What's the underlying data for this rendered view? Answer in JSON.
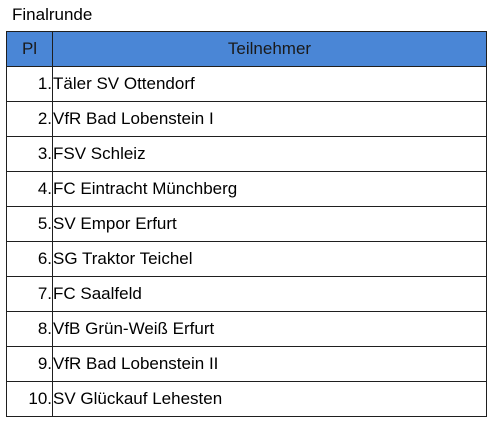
{
  "title": "Finalrunde",
  "table": {
    "header_color": "#4a86d6",
    "columns": [
      "Pl",
      "Teilnehmer"
    ],
    "rows": [
      {
        "pos": "1.",
        "team": "Täler SV Ottendorf"
      },
      {
        "pos": "2.",
        "team": "VfR Bad Lobenstein I"
      },
      {
        "pos": "3.",
        "team": "FSV Schleiz"
      },
      {
        "pos": "4.",
        "team": "FC Eintracht Münchberg"
      },
      {
        "pos": "5.",
        "team": "SV Empor Erfurt"
      },
      {
        "pos": "6.",
        "team": "SG Traktor Teichel"
      },
      {
        "pos": "7.",
        "team": "FC Saalfeld"
      },
      {
        "pos": "8.",
        "team": "VfB Grün-Weiß Erfurt"
      },
      {
        "pos": "9.",
        "team": "VfR Bad Lobenstein II"
      },
      {
        "pos": "10.",
        "team": "SV Glückauf Lehesten"
      }
    ]
  }
}
